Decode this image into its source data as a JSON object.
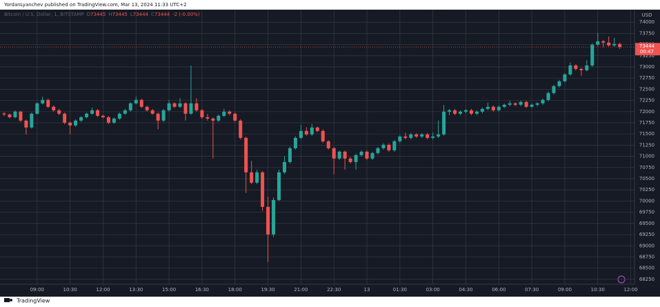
{
  "published": "YordanLyanchev published on TradingView.com, Mar 13, 2024 11:33 UTC+2",
  "footer": "TradingView",
  "chart_data": {
    "type": "candlestick",
    "legend_symbol": "Bitcoin / U.S. Dollar, 1, BITSTAMP",
    "legend_values": [
      {
        "label": "O",
        "value": 73445
      },
      {
        "label": "H",
        "value": 73445
      },
      {
        "label": "L",
        "value": 73444
      },
      {
        "label": "C",
        "value": 73444
      }
    ],
    "legend_change": "-2 (-0.00%)",
    "currency": "USD",
    "price_tag": {
      "price": 73444,
      "countdown": "00:47"
    },
    "up_color": "#26a69a",
    "down_color": "#ef5350",
    "grid": true,
    "ylim": [
      68140,
      74280
    ],
    "yticks": [
      68250,
      68500,
      68750,
      69000,
      69250,
      69500,
      69750,
      70000,
      70250,
      70500,
      70750,
      71000,
      71250,
      71500,
      71750,
      72000,
      72250,
      72500,
      72750,
      73000,
      73250,
      73500,
      73750,
      74000
    ],
    "categories": [
      null,
      null,
      null,
      null,
      null,
      null,
      "09:00",
      null,
      null,
      null,
      null,
      null,
      "10:30",
      null,
      null,
      null,
      null,
      null,
      "12:00",
      null,
      null,
      null,
      null,
      null,
      "13:30",
      null,
      null,
      null,
      null,
      null,
      "15:00",
      null,
      null,
      null,
      null,
      null,
      "16:30",
      null,
      null,
      null,
      null,
      null,
      "18:00",
      null,
      null,
      null,
      null,
      null,
      "19:30",
      null,
      null,
      null,
      null,
      null,
      "21:00",
      null,
      null,
      null,
      null,
      null,
      "22:30",
      null,
      null,
      null,
      null,
      null,
      "13",
      null,
      null,
      null,
      null,
      null,
      "01:30",
      null,
      null,
      null,
      null,
      null,
      "03:00",
      null,
      null,
      null,
      null,
      null,
      "04:30",
      null,
      null,
      null,
      null,
      null,
      "06:00",
      null,
      null,
      null,
      null,
      null,
      "07:30",
      null,
      null,
      null,
      null,
      null,
      "09:00",
      null,
      null,
      null,
      null,
      null,
      "10:30",
      null,
      null,
      null,
      null,
      null,
      "12:00"
    ],
    "ohlc": [
      [
        71960,
        71990,
        71900,
        71938
      ],
      [
        71938,
        71960,
        71850,
        71875
      ],
      [
        71875,
        72030,
        71850,
        71999
      ],
      [
        71999,
        72020,
        71770,
        71799
      ],
      [
        71799,
        71820,
        71490,
        71645
      ],
      [
        71645,
        71980,
        71620,
        71953
      ],
      [
        71953,
        72210,
        71930,
        72185
      ],
      [
        72185,
        72330,
        72160,
        72262
      ],
      [
        72262,
        72290,
        72080,
        72108
      ],
      [
        72108,
        72140,
        72000,
        72030
      ],
      [
        72030,
        72060,
        71920,
        71953
      ],
      [
        71953,
        71980,
        71720,
        71753
      ],
      [
        71753,
        71780,
        71490,
        71691
      ],
      [
        71691,
        71830,
        71660,
        71799
      ],
      [
        71799,
        71900,
        71770,
        71875
      ],
      [
        71875,
        71980,
        71850,
        71953
      ],
      [
        71953,
        72090,
        71930,
        72030
      ],
      [
        72030,
        72060,
        71880,
        71907
      ],
      [
        71907,
        71930,
        71850,
        71875
      ],
      [
        71875,
        71900,
        71720,
        71753
      ],
      [
        71753,
        71870,
        71730,
        71845
      ],
      [
        71845,
        71980,
        71820,
        71953
      ],
      [
        71953,
        72060,
        71930,
        72030
      ],
      [
        72030,
        72210,
        72000,
        72185
      ],
      [
        72185,
        72330,
        72160,
        72262
      ],
      [
        72262,
        72290,
        72080,
        72108
      ],
      [
        72108,
        72130,
        72000,
        72030
      ],
      [
        72030,
        72060,
        71930,
        71953
      ],
      [
        71953,
        71980,
        71600,
        71799
      ],
      [
        71799,
        72060,
        71770,
        72030
      ],
      [
        72030,
        72260,
        72000,
        72185
      ],
      [
        72185,
        72210,
        72080,
        72108
      ],
      [
        72108,
        72300,
        72080,
        72185
      ],
      [
        72185,
        72210,
        71800,
        71953
      ],
      [
        71953,
        73033,
        71930,
        72185
      ],
      [
        72185,
        72300,
        72000,
        72030
      ],
      [
        72030,
        72060,
        71840,
        71875
      ],
      [
        71875,
        71950,
        71800,
        71845
      ],
      [
        71845,
        71870,
        70950,
        71799
      ],
      [
        71799,
        71940,
        71770,
        71907
      ],
      [
        71907,
        72060,
        71880,
        71999
      ],
      [
        71999,
        72030,
        71920,
        71953
      ],
      [
        71953,
        71980,
        71770,
        71799
      ],
      [
        71799,
        71830,
        71380,
        71413
      ],
      [
        71413,
        71440,
        70180,
        70642
      ],
      [
        70642,
        70900,
        70380,
        70410
      ],
      [
        70410,
        70700,
        70380,
        70642
      ],
      [
        70642,
        70670,
        69780,
        69870
      ],
      [
        69870,
        70100,
        68636,
        69253
      ],
      [
        69253,
        70080,
        69200,
        70024
      ],
      [
        70024,
        70700,
        70000,
        70642
      ],
      [
        70642,
        71000,
        70600,
        70873
      ],
      [
        70873,
        71220,
        70840,
        71182
      ],
      [
        71182,
        71450,
        71150,
        71413
      ],
      [
        71413,
        71700,
        71380,
        71568
      ],
      [
        71568,
        71650,
        71460,
        71490
      ],
      [
        71490,
        71720,
        71460,
        71645
      ],
      [
        71645,
        71670,
        71540,
        71568
      ],
      [
        71568,
        71600,
        71300,
        71336
      ],
      [
        71336,
        71360,
        71150,
        71182
      ],
      [
        71182,
        71210,
        70600,
        70950
      ],
      [
        70950,
        71130,
        70920,
        71104
      ],
      [
        71104,
        71130,
        70700,
        70950
      ],
      [
        70950,
        70980,
        70840,
        70873
      ],
      [
        70873,
        71060,
        70700,
        71027
      ],
      [
        71027,
        71130,
        71000,
        71104
      ],
      [
        71104,
        71130,
        70920,
        70950
      ],
      [
        70950,
        71100,
        70920,
        71073
      ],
      [
        71073,
        71210,
        71040,
        71182
      ],
      [
        71182,
        71290,
        71150,
        71259
      ],
      [
        71259,
        71290,
        71100,
        71135
      ],
      [
        71135,
        71370,
        71100,
        71336
      ],
      [
        71336,
        71470,
        71300,
        71444
      ],
      [
        71444,
        71530,
        71380,
        71413
      ],
      [
        71413,
        71520,
        71380,
        71490
      ],
      [
        71490,
        71520,
        71410,
        71444
      ],
      [
        71444,
        71520,
        71410,
        71490
      ],
      [
        71490,
        71520,
        71380,
        71413
      ],
      [
        71413,
        71530,
        71380,
        71444
      ],
      [
        71444,
        71800,
        71410,
        71490
      ],
      [
        71490,
        72150,
        71460,
        71999
      ],
      [
        71999,
        72060,
        71920,
        72030
      ],
      [
        72030,
        72060,
        71920,
        71953
      ],
      [
        71953,
        72030,
        71920,
        71999
      ],
      [
        71999,
        72060,
        71960,
        72030
      ],
      [
        72030,
        72060,
        71920,
        71953
      ],
      [
        71953,
        72030,
        71920,
        71999
      ],
      [
        71999,
        72090,
        71960,
        72061
      ],
      [
        72061,
        72200,
        72030,
        72108
      ],
      [
        72108,
        72140,
        72000,
        72030
      ],
      [
        72030,
        72140,
        72000,
        72108
      ],
      [
        72108,
        72180,
        72080,
        72154
      ],
      [
        72154,
        72240,
        72120,
        72185
      ],
      [
        72185,
        72210,
        72120,
        72154
      ],
      [
        72154,
        72250,
        72120,
        72216
      ],
      [
        72216,
        72240,
        72080,
        72108
      ],
      [
        72108,
        72180,
        72080,
        72154
      ],
      [
        72154,
        72210,
        72120,
        72185
      ],
      [
        72185,
        72290,
        72150,
        72262
      ],
      [
        72262,
        72450,
        72230,
        72416
      ],
      [
        72416,
        72600,
        72380,
        72570
      ],
      [
        72570,
        72710,
        72540,
        72678
      ],
      [
        72678,
        72860,
        72650,
        72832
      ],
      [
        72832,
        73100,
        72800,
        73033
      ],
      [
        73033,
        73060,
        72920,
        72955
      ],
      [
        72955,
        72980,
        72800,
        72925
      ],
      [
        72925,
        73150,
        72900,
        73033
      ],
      [
        73033,
        73530,
        73000,
        73496
      ],
      [
        73496,
        73760,
        73460,
        73573
      ],
      [
        73573,
        73600,
        73440,
        73543
      ],
      [
        73543,
        73680,
        73450,
        73481
      ],
      [
        73481,
        73650,
        73450,
        73512
      ],
      [
        73512,
        73540,
        73400,
        73444
      ],
      null,
      null
    ]
  }
}
